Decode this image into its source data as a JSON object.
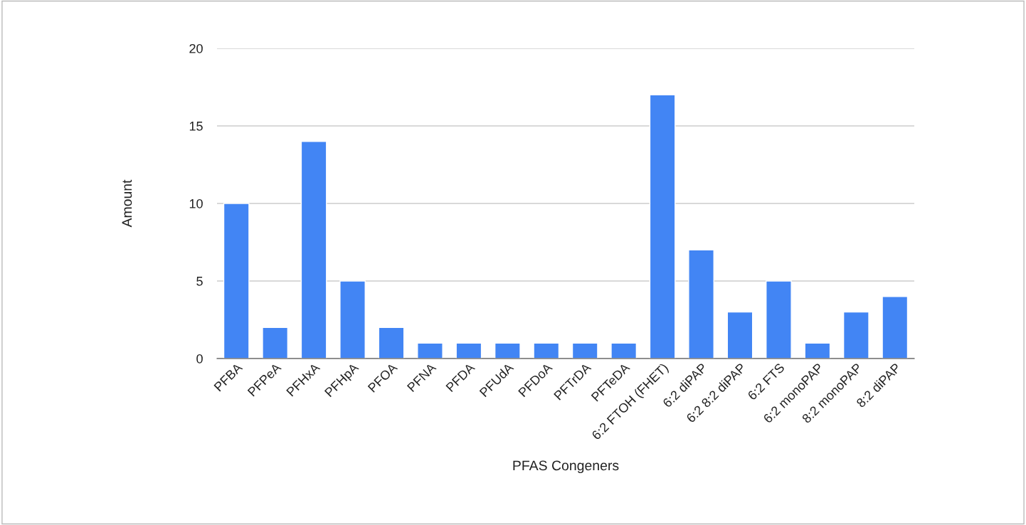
{
  "chart_data": {
    "type": "bar",
    "xlabel": "PFAS Congeners",
    "ylabel": "Amount",
    "categories": [
      "PFBA",
      "PFPeA",
      "PFHxA",
      "PFHpA",
      "PFOA",
      "PFNA",
      "PFDA",
      "PFUdA",
      "PFDoA",
      "PFTrDA",
      "PFTeDA",
      "6:2 FTOH (FHET)",
      "6:2 diPAP",
      "6:2 8:2 diPAP",
      "6:2 FTS",
      "6:2 monoPAP",
      "8:2 monoPAP",
      "8:2 diPAP"
    ],
    "values": [
      10,
      2,
      14,
      5,
      2,
      1,
      1,
      1,
      1,
      1,
      1,
      17,
      7,
      3,
      5,
      1,
      3,
      4
    ],
    "color": "#4285f4",
    "ylim": [
      0,
      20
    ],
    "yticks": [
      0,
      5,
      10,
      15,
      20
    ],
    "grid": "y"
  }
}
